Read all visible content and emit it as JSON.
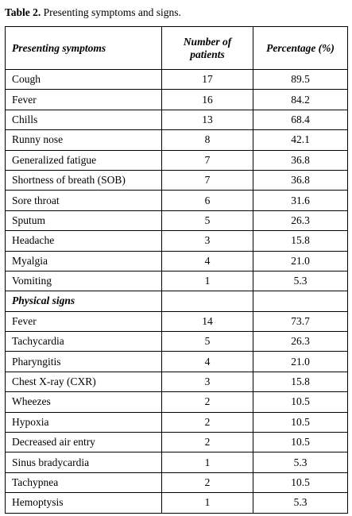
{
  "caption": {
    "label": "Table 2.",
    "text": " Presenting symptoms and signs."
  },
  "table": {
    "headers": [
      "Presenting symptoms",
      "Number of patients",
      "Percentage (%)"
    ],
    "symptoms": [
      {
        "name": "Cough",
        "count": "17",
        "pct": "89.5"
      },
      {
        "name": "Fever",
        "count": "16",
        "pct": "84.2"
      },
      {
        "name": "Chills",
        "count": "13",
        "pct": "68.4"
      },
      {
        "name": "Runny nose",
        "count": "8",
        "pct": "42.1"
      },
      {
        "name": "Generalized fatigue",
        "count": "7",
        "pct": "36.8"
      },
      {
        "name": "Shortness of breath (SOB)",
        "count": "7",
        "pct": "36.8"
      },
      {
        "name": "Sore throat",
        "count": "6",
        "pct": "31.6"
      },
      {
        "name": "Sputum",
        "count": "5",
        "pct": "26.3"
      },
      {
        "name": "Headache",
        "count": "3",
        "pct": "15.8"
      },
      {
        "name": "Myalgia",
        "count": "4",
        "pct": "21.0"
      },
      {
        "name": "Vomiting",
        "count": "1",
        "pct": "5.3"
      }
    ],
    "signs_heading": "Physical signs",
    "signs": [
      {
        "name": "Fever",
        "count": "14",
        "pct": "73.7"
      },
      {
        "name": "Tachycardia",
        "count": "5",
        "pct": "26.3"
      },
      {
        "name": "Pharyngitis",
        "count": "4",
        "pct": "21.0"
      },
      {
        "name": "Chest X-ray (CXR)",
        "count": "3",
        "pct": "15.8"
      },
      {
        "name": "Wheezes",
        "count": "2",
        "pct": "10.5"
      },
      {
        "name": "Hypoxia",
        "count": "2",
        "pct": "10.5"
      },
      {
        "name": "Decreased air entry",
        "count": "2",
        "pct": "10.5"
      },
      {
        "name": "Sinus bradycardia",
        "count": "1",
        "pct": "5.3"
      },
      {
        "name": "Tachypnea",
        "count": "2",
        "pct": "10.5"
      },
      {
        "name": "Hemoptysis",
        "count": "1",
        "pct": "5.3"
      }
    ]
  }
}
